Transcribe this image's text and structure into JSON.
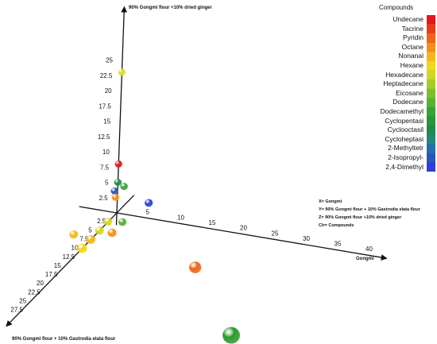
{
  "chart_data": {
    "type": "scatter",
    "dimensions": 3,
    "axes": {
      "x": {
        "name": "Gongmi",
        "ticks": [
          "5",
          "10",
          "15",
          "20",
          "25",
          "30",
          "35",
          "40"
        ]
      },
      "y": {
        "name": "90% Gongmi flour + 10% Gastrodia elata flour",
        "ticks": [
          "2.5",
          "5",
          "7.5",
          "10",
          "12.5",
          "15",
          "17.5",
          "20",
          "22.5",
          "25",
          "27.5"
        ]
      },
      "z": {
        "name": "90% Gongmi flour +10% dried ginger",
        "ticks": [
          "2.5",
          "5",
          "7.5",
          "10",
          "12.5",
          "15",
          "17.5",
          "20",
          "22.5",
          "25"
        ]
      }
    },
    "legend": {
      "title": "Compounds",
      "placement": "right",
      "entries": [
        "Undecane",
        "Tacrine",
        "Pyridin",
        "Octane",
        "Nonanal",
        "Hexane",
        "Hexadecane",
        "Heptadecane",
        "Eicosane",
        "Dodecane",
        "Dodecamethyl",
        "Cyclopentasi",
        "Cyclooctasil",
        "Cycloheptasi",
        "2-Methyltetr",
        "2-Isopropyl-",
        "2,4-Dimethyl"
      ],
      "colors": [
        "#e8141c",
        "#ea3a18",
        "#ee6516",
        "#f2901a",
        "#f4b81c",
        "#f0d81a",
        "#cfd822",
        "#a8cc26",
        "#7cbf2a",
        "#54b230",
        "#38a234",
        "#2a9438",
        "#1f8a4a",
        "#208a78",
        "#2470a8",
        "#2856c0",
        "#2c3fd8"
      ]
    },
    "points": [
      {
        "x": 0,
        "y": 0,
        "z": 23,
        "color": "#dede22"
      },
      {
        "x": 0,
        "y": 0,
        "z": 8,
        "color": "#e01818"
      },
      {
        "x": 0,
        "y": 0,
        "z": 5,
        "color": "#1f8a4a"
      },
      {
        "x": 1,
        "y": 0,
        "z": 4.5,
        "color": "#38a234"
      },
      {
        "x": -0.5,
        "y": 0,
        "z": 3.5,
        "color": "#2856c0"
      },
      {
        "x": -0.3,
        "y": 0,
        "z": 2.5,
        "color": "#f2901a"
      },
      {
        "x": 5,
        "y": 0,
        "z": 2.5,
        "color": "#2c3fd8"
      },
      {
        "x": 0,
        "y": 2.5,
        "z": 0,
        "color": "#d8d81c"
      },
      {
        "x": 2,
        "y": 2,
        "z": 0,
        "color": "#54b230"
      },
      {
        "x": 0,
        "y": 5,
        "z": 0,
        "color": "#cfd822"
      },
      {
        "x": 2,
        "y": 5,
        "z": 0,
        "color": "#f2901a"
      },
      {
        "x": -3,
        "y": 7,
        "z": 0,
        "color": "#f4b81c"
      },
      {
        "x": 0,
        "y": 7.5,
        "z": 0,
        "color": "#f4b81c"
      },
      {
        "x": 0,
        "y": 10,
        "z": 0,
        "color": "#f0d81a"
      },
      {
        "x": 18,
        "y": 10,
        "z": 0,
        "color": "#ee6516"
      },
      {
        "x": 32,
        "y": 25,
        "z": 0,
        "color": "#2e9a2a"
      }
    ]
  },
  "axis_key": {
    "x": "X= Gongmi",
    "y": "Y=  90% Gongmi flour + 10% Gastrodia elata flour",
    "z": "Z=  90% Gongmi flour +10% dried ginger",
    "c": "Clr=  Compounds"
  }
}
